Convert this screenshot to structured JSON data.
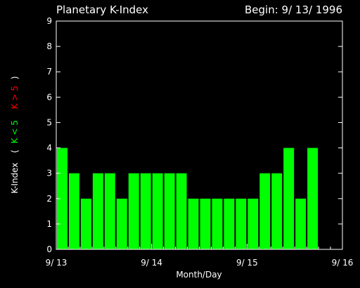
{
  "chart_data": {
    "type": "bar",
    "title": "Planetary K-Index",
    "subtitle": "Begin: 9/ 13/ 1996",
    "xlabel": "Month/Day",
    "ylabel": {
      "main": "K-Index",
      "open": "(",
      "green_part": "K < 5",
      "red_part": "K > 5",
      "close": ")"
    },
    "ylim": [
      0,
      9
    ],
    "yticks": [
      0,
      1,
      2,
      3,
      4,
      5,
      6,
      7,
      8,
      9
    ],
    "xlim": [
      0,
      24
    ],
    "xticks": [
      {
        "pos": 0,
        "label": "9/ 13"
      },
      {
        "pos": 8,
        "label": "9/ 14"
      },
      {
        "pos": 16,
        "label": "9/ 15"
      },
      {
        "pos": 24,
        "label": "9/ 16"
      }
    ],
    "values": [
      4,
      3,
      2,
      3,
      3,
      2,
      3,
      3,
      3,
      3,
      3,
      2,
      2,
      2,
      2,
      2,
      2,
      3,
      3,
      4,
      2,
      4
    ],
    "colors": {
      "low": "#00ff00",
      "high": "#ff0000",
      "axes": "#ffffff",
      "background": "#000000"
    },
    "threshold": 5
  }
}
